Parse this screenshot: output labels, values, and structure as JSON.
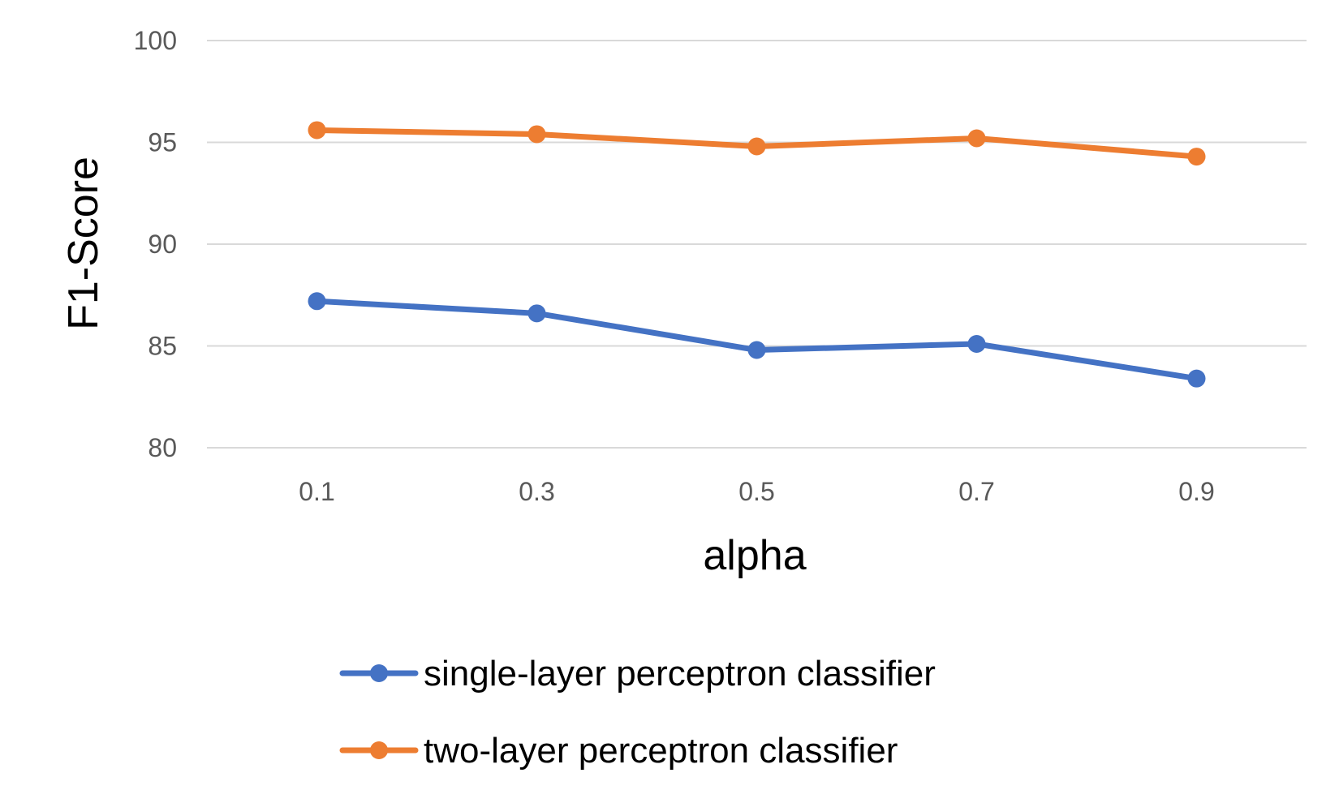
{
  "chart_data": {
    "type": "line",
    "x": [
      "0.1",
      "0.3",
      "0.5",
      "0.7",
      "0.9"
    ],
    "series": [
      {
        "name": "single-layer perceptron classifier",
        "color": "#4472c4",
        "values": [
          87.2,
          86.6,
          84.8,
          85.1,
          83.4
        ]
      },
      {
        "name": "two-layer perceptron classifier",
        "color": "#ed7d31",
        "values": [
          95.6,
          95.4,
          94.8,
          95.2,
          94.3
        ]
      }
    ],
    "xlabel": "alpha",
    "ylabel": "F1-Score",
    "ylim": [
      80,
      100
    ],
    "yticks": [
      "80",
      "85",
      "90",
      "95",
      "100"
    ],
    "grid": true,
    "legend_position": "bottom"
  }
}
